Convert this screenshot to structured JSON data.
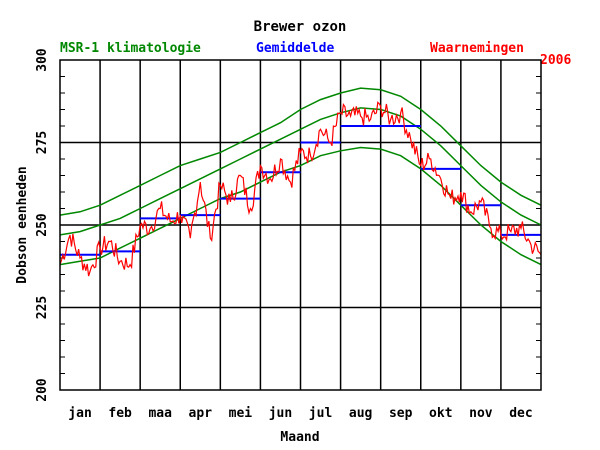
{
  "chart_data": {
    "type": "line",
    "title": "Brewer ozon",
    "year_label": "2006",
    "xlabel": "Maand",
    "ylabel": "Dobson eenheden",
    "ylim": [
      200,
      300
    ],
    "yticks": [
      200,
      225,
      250,
      275,
      300
    ],
    "yticks_display": [
      "200",
      "225",
      "250",
      "275",
      "300"
    ],
    "months": [
      "jan",
      "feb",
      "maa",
      "apr",
      "mei",
      "jun",
      "jul",
      "aug",
      "sep",
      "okt",
      "nov",
      "dec"
    ],
    "grid": true,
    "legend": [
      {
        "label": "MSR-1 klimatologie",
        "color": "#008800"
      },
      {
        "label": "Gemiddelde",
        "color": "#0000ff"
      },
      {
        "label": "Waarnemingen",
        "color": "#ff0000"
      }
    ],
    "series": [
      {
        "name": "MSR-1 klimatologie",
        "color": "#008800",
        "x_month": [
          0,
          0.5,
          1,
          1.5,
          2,
          2.5,
          3,
          3.5,
          4,
          4.5,
          5,
          5.5,
          6,
          6.5,
          7,
          7.5,
          8,
          8.5,
          9,
          9.5,
          10,
          10.5,
          11,
          11.5,
          12
        ],
        "mean": [
          247,
          248,
          250,
          252,
          255,
          258,
          261,
          264,
          267,
          270,
          273,
          276,
          279,
          282,
          284,
          285.5,
          285,
          283,
          279,
          274,
          268,
          262,
          257,
          253,
          250
        ],
        "upper": [
          253,
          254,
          256,
          259,
          262,
          265,
          268,
          270,
          272,
          275,
          278,
          281,
          285,
          288,
          290,
          291.5,
          291,
          289,
          285,
          280,
          274,
          268,
          263,
          259,
          256
        ],
        "lower": [
          238,
          239,
          240,
          243,
          246,
          249,
          252,
          255,
          258,
          260,
          263,
          266,
          268,
          271,
          272.5,
          273.5,
          273,
          271,
          267,
          262,
          256,
          250,
          245,
          241,
          238
        ]
      },
      {
        "name": "Gemiddelde",
        "color": "#0000ff",
        "monthly_mean": [
          241,
          242,
          252,
          253,
          258,
          266,
          275,
          280,
          280,
          267,
          256,
          247
        ]
      },
      {
        "name": "Waarnemingen",
        "color": "#ff0000",
        "x_month": [
          0,
          0.25,
          0.5,
          0.75,
          1,
          1.25,
          1.5,
          1.75,
          2,
          2.25,
          2.5,
          2.75,
          3,
          3.25,
          3.5,
          3.75,
          4,
          4.25,
          4.5,
          4.75,
          5,
          5.25,
          5.5,
          5.75,
          6,
          6.25,
          6.5,
          6.75,
          7,
          7.25,
          7.5,
          7.75,
          8,
          8.25,
          8.5,
          8.75,
          9,
          9.25,
          9.5,
          9.75,
          10,
          10.25,
          10.5,
          10.75,
          11,
          11.25,
          11.5,
          11.75,
          12
        ],
        "values": [
          238,
          247,
          240,
          236,
          243,
          245,
          239,
          238,
          250,
          249,
          255,
          251,
          253,
          246,
          263,
          246,
          262,
          257,
          265,
          255,
          268,
          264,
          270,
          263,
          272,
          271,
          279,
          275,
          284,
          283,
          283,
          282,
          286,
          282,
          284,
          276,
          268,
          270,
          264,
          258,
          260,
          254,
          257,
          249,
          247,
          248,
          249,
          244,
          241
        ]
      }
    ]
  }
}
